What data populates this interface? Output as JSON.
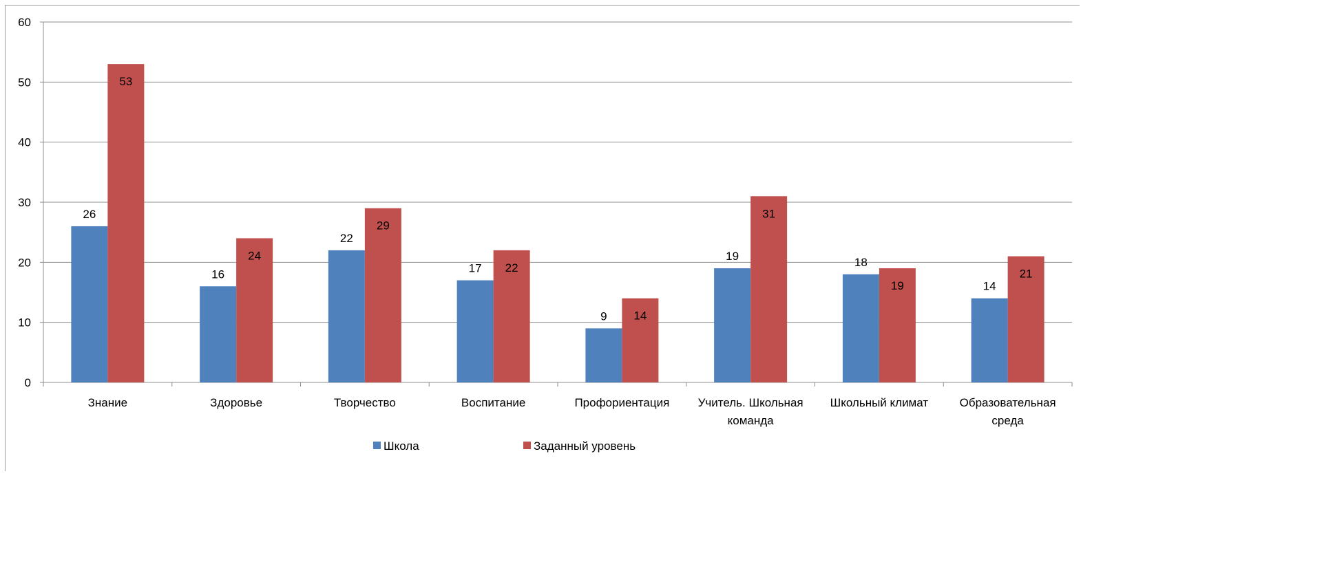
{
  "chart_data": {
    "type": "bar",
    "categories": [
      [
        "Знание"
      ],
      [
        "Здоровье"
      ],
      [
        "Творчество"
      ],
      [
        "Воспитание"
      ],
      [
        "Профориентация"
      ],
      [
        "Учитель. Школьная",
        "команда"
      ],
      [
        "Школьный климат"
      ],
      [
        "Образовательная",
        "среда"
      ]
    ],
    "series": [
      {
        "name": "Школа",
        "color": "#4F81BD",
        "values": [
          26,
          16,
          22,
          17,
          9,
          19,
          18,
          14
        ]
      },
      {
        "name": "Заданный уровень",
        "color": "#C0504D",
        "values": [
          53,
          24,
          29,
          22,
          14,
          31,
          19,
          21
        ]
      }
    ],
    "title": "",
    "xlabel": "",
    "ylabel": "",
    "ylim": [
      0,
      60
    ],
    "yticks": [
      0,
      10,
      20,
      30,
      40,
      50,
      60
    ],
    "grid": true,
    "legend_position": "bottom"
  }
}
